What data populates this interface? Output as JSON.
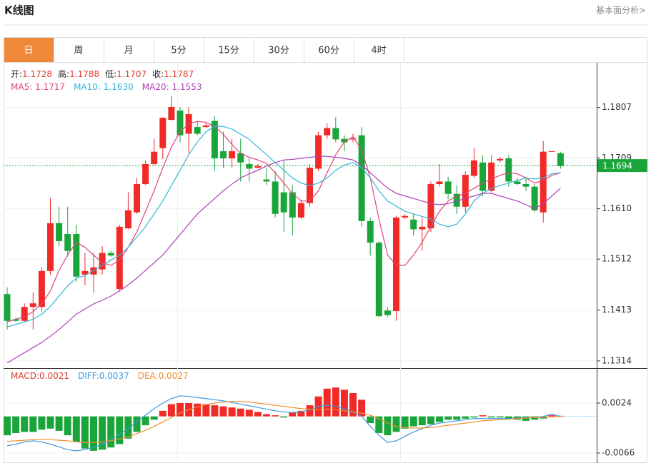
{
  "header": {
    "title": "K线图",
    "link": "基本面分析>"
  },
  "tabs": [
    "日",
    "周",
    "月",
    "5分",
    "15分",
    "30分",
    "60分",
    "4时"
  ],
  "info": {
    "row1": [
      {
        "label": "开:",
        "value": "1.1728"
      },
      {
        "label": "高:",
        "value": "1.1788"
      },
      {
        "label": "低:",
        "value": "1.1707"
      },
      {
        "label": "收:",
        "value": "1.1787"
      }
    ],
    "row2": [
      {
        "label": "MA5: ",
        "value": "1.1717",
        "color": "#e0457b"
      },
      {
        "label": "MA10: ",
        "value": "1.1630",
        "color": "#35b5d8"
      },
      {
        "label": "MA20: ",
        "value": "1.1553",
        "color": "#b040b8"
      }
    ],
    "macd": [
      {
        "label": "MACD:",
        "value": "0.0021",
        "color": "#e03a2e"
      },
      {
        "label": "DIFF:",
        "value": "0.0037",
        "color": "#3d9be0"
      },
      {
        "label": "DEA:",
        "value": "0.0027",
        "color": "#f0902c"
      }
    ]
  },
  "chart_data": [
    {
      "type": "candlestick",
      "up_color": "#f02a26",
      "down_color": "#1aa53a",
      "ylim": [
        1.13,
        1.1894
      ],
      "yticks": [
        {
          "value": 1.1807,
          "label": "1.1807"
        },
        {
          "value": 1.1709,
          "label": "1.1709"
        },
        {
          "value": 1.161,
          "label": "1.1610"
        },
        {
          "value": 1.1512,
          "label": "1.1512"
        },
        {
          "value": 1.1413,
          "label": "1.1413"
        },
        {
          "value": 1.1314,
          "label": "1.1314"
        }
      ],
      "current_price": 1.1694,
      "current_color": "#1aa53a",
      "open": [
        1.1444,
        1.1395,
        1.1392,
        1.1419,
        1.1419,
        1.1489,
        1.1582,
        1.1561,
        1.1561,
        1.1482,
        1.1482,
        1.1492,
        1.1524,
        1.1454,
        1.1572,
        1.1603,
        1.1658,
        1.1697,
        1.1728,
        1.1783,
        1.1801,
        1.1756,
        1.1769,
        1.1769,
        1.1781,
        1.1722,
        1.1708,
        1.1718,
        1.1697,
        1.169,
        1.1667,
        1.1663,
        1.1642,
        1.1642,
        1.1593,
        1.1621,
        1.1688,
        1.1753,
        1.1767,
        1.1746,
        1.1745,
        1.1753,
        1.1586,
        1.1544,
        1.1412,
        1.1411,
        1.1593,
        1.1589,
        1.157,
        1.1572,
        1.1658,
        1.1663,
        1.1639,
        1.1614,
        1.1674,
        1.17,
        1.1645,
        1.1704,
        1.1708,
        1.1663,
        1.1658,
        1.1653,
        1.1603,
        1.1721,
        1.1718
      ],
      "high": [
        1.1457,
        1.1399,
        1.1426,
        1.1447,
        1.1496,
        1.1631,
        1.1614,
        1.1614,
        1.1579,
        1.1524,
        1.1524,
        1.1537,
        1.1528,
        1.1579,
        1.1642,
        1.167,
        1.1704,
        1.1746,
        1.1788,
        1.1829,
        1.1808,
        1.1808,
        1.1781,
        1.1776,
        1.179,
        1.176,
        1.1746,
        1.1746,
        1.1708,
        1.1697,
        1.169,
        1.1683,
        1.1704,
        1.1656,
        1.1628,
        1.1697,
        1.176,
        1.1776,
        1.1788,
        1.1753,
        1.1756,
        1.1769,
        1.1593,
        1.1547,
        1.1419,
        1.1596,
        1.16,
        1.16,
        1.1593,
        1.1663,
        1.1697,
        1.1672,
        1.1656,
        1.1683,
        1.1728,
        1.1714,
        1.1714,
        1.1711,
        1.1714,
        1.167,
        1.167,
        1.1658,
        1.1742,
        1.1722,
        1.1721
      ],
      "low": [
        1.1375,
        1.1389,
        1.1389,
        1.1375,
        1.141,
        1.1482,
        1.1537,
        1.1517,
        1.1468,
        1.1461,
        1.1447,
        1.1482,
        1.1517,
        1.145,
        1.157,
        1.16,
        1.1656,
        1.1694,
        1.1707,
        1.1781,
        1.1739,
        1.1718,
        1.1753,
        1.1767,
        1.1683,
        1.169,
        1.169,
        1.1663,
        1.1663,
        1.1688,
        1.1656,
        1.1593,
        1.1565,
        1.1558,
        1.159,
        1.1614,
        1.1683,
        1.1746,
        1.1739,
        1.1722,
        1.1739,
        1.1575,
        1.1519,
        1.1399,
        1.1399,
        1.1392,
        1.159,
        1.1558,
        1.1528,
        1.1565,
        1.1653,
        1.1628,
        1.16,
        1.1603,
        1.167,
        1.1635,
        1.1642,
        1.17,
        1.1653,
        1.1656,
        1.1645,
        1.1603,
        1.1583,
        1.1721,
        1.1688
      ],
      "close": [
        1.1392,
        1.1392,
        1.1419,
        1.1426,
        1.1489,
        1.1582,
        1.1547,
        1.1528,
        1.1478,
        1.1489,
        1.1496,
        1.1524,
        1.1519,
        1.1575,
        1.1607,
        1.1658,
        1.1697,
        1.1721,
        1.1787,
        1.1808,
        1.1753,
        1.1794,
        1.1756,
        1.1772,
        1.1708,
        1.1708,
        1.1722,
        1.17,
        1.1688,
        1.1693,
        1.1663,
        1.16,
        1.1603,
        1.1593,
        1.1621,
        1.169,
        1.1753,
        1.1767,
        1.1745,
        1.1739,
        1.1747,
        1.1586,
        1.1544,
        1.1401,
        1.1403,
        1.1593,
        1.1596,
        1.157,
        1.1575,
        1.1658,
        1.1663,
        1.1639,
        1.1614,
        1.1676,
        1.1704,
        1.1645,
        1.17,
        1.1707,
        1.1663,
        1.1658,
        1.1653,
        1.1607,
        1.1721,
        1.1722,
        1.1693
      ],
      "series": [
        {
          "name": "MA5",
          "color": "#e0457b",
          "values": [
            1.139,
            1.1395,
            1.14,
            1.141,
            1.1425,
            1.145,
            1.149,
            1.152,
            1.1545,
            1.1535,
            1.152,
            1.1505,
            1.15,
            1.151,
            1.1535,
            1.1565,
            1.1605,
            1.1645,
            1.169,
            1.173,
            1.176,
            1.1775,
            1.178,
            1.1778,
            1.177,
            1.1755,
            1.1735,
            1.1718,
            1.171,
            1.1705,
            1.1698,
            1.168,
            1.166,
            1.164,
            1.1625,
            1.1625,
            1.1645,
            1.168,
            1.1715,
            1.174,
            1.175,
            1.1725,
            1.167,
            1.159,
            1.152,
            1.15,
            1.15,
            1.152,
            1.1545,
            1.1575,
            1.1605,
            1.1625,
            1.1635,
            1.164,
            1.165,
            1.166,
            1.1668,
            1.1675,
            1.168,
            1.1678,
            1.167,
            1.166,
            1.1665,
            1.1675,
            1.168
          ]
        },
        {
          "name": "MA10",
          "color": "#35b5d8",
          "values": [
            1.138,
            1.1385,
            1.139,
            1.1395,
            1.1405,
            1.142,
            1.144,
            1.146,
            1.1475,
            1.148,
            1.149,
            1.15,
            1.151,
            1.152,
            1.1535,
            1.1555,
            1.1575,
            1.16,
            1.1625,
            1.1655,
            1.1685,
            1.1715,
            1.174,
            1.176,
            1.177,
            1.177,
            1.1765,
            1.1755,
            1.1745,
            1.173,
            1.1715,
            1.17,
            1.1685,
            1.167,
            1.166,
            1.1655,
            1.166,
            1.167,
            1.1685,
            1.1695,
            1.17,
            1.169,
            1.167,
            1.1645,
            1.1625,
            1.1615,
            1.1605,
            1.16,
            1.1595,
            1.159,
            1.158,
            1.1575,
            1.158,
            1.16,
            1.1625,
            1.164,
            1.165,
            1.1655,
            1.166,
            1.1665,
            1.167,
            1.1668,
            1.167,
            1.1678,
            1.168
          ]
        },
        {
          "name": "MA20",
          "color": "#b040b8",
          "values": [
            1.131,
            1.132,
            1.133,
            1.134,
            1.135,
            1.1362,
            1.1375,
            1.139,
            1.1405,
            1.1415,
            1.1425,
            1.1432,
            1.144,
            1.145,
            1.1462,
            1.1475,
            1.149,
            1.1505,
            1.152,
            1.154,
            1.156,
            1.158,
            1.16,
            1.1615,
            1.163,
            1.1645,
            1.1658,
            1.167,
            1.1678,
            1.1685,
            1.1693,
            1.17,
            1.1705,
            1.1706,
            1.1708,
            1.171,
            1.1712,
            1.1712,
            1.171,
            1.1708,
            1.1705,
            1.1695,
            1.168,
            1.1665,
            1.165,
            1.164,
            1.1635,
            1.163,
            1.1625,
            1.162,
            1.1618,
            1.162,
            1.1625,
            1.163,
            1.1635,
            1.164,
            1.164,
            1.1635,
            1.163,
            1.1625,
            1.1618,
            1.161,
            1.162,
            1.1635,
            1.165
          ]
        }
      ]
    },
    {
      "type": "macd",
      "ylim": [
        -0.0084,
        0.0087
      ],
      "yticks": [
        0.0024,
        -0.0066
      ],
      "up_color": "#f02a26",
      "down_color": "#1aa53a",
      "histogram": [
        -0.0034,
        -0.003,
        -0.0028,
        -0.0028,
        -0.0024,
        -0.0022,
        -0.0026,
        -0.0034,
        -0.0046,
        -0.0058,
        -0.0062,
        -0.006,
        -0.0056,
        -0.005,
        -0.004,
        -0.0028,
        -0.0016,
        -0.0006,
        0.001,
        0.0022,
        0.0024,
        0.0024,
        0.0023,
        0.0022,
        0.002,
        0.0018,
        0.0016,
        0.0014,
        0.0012,
        0.0008,
        0.0004,
        0.0002,
        -0.0002,
        0.0008,
        0.001,
        0.002,
        0.0036,
        0.005,
        0.0052,
        0.0048,
        0.0042,
        0.003,
        -0.0012,
        -0.003,
        -0.0034,
        -0.0028,
        -0.0022,
        -0.0018,
        -0.0016,
        -0.0014,
        -0.001,
        -0.0006,
        -0.0006,
        -0.0004,
        -0.0002,
        0.0002,
        -0.0002,
        -0.0002,
        -0.0004,
        -0.0006,
        -0.0008,
        -0.0006,
        -0.0004,
        0.0002,
        0.0001
      ],
      "series": [
        {
          "name": "DIFF",
          "color": "#3d9be0",
          "values": [
            -0.0053,
            -0.005,
            -0.0046,
            -0.0044,
            -0.0046,
            -0.005,
            -0.0055,
            -0.006,
            -0.0062,
            -0.006,
            -0.0056,
            -0.005,
            -0.0042,
            -0.0032,
            -0.0022,
            -0.001,
            0.0002,
            0.0014,
            0.0024,
            0.0032,
            0.0037,
            0.0036,
            0.0034,
            0.0032,
            0.003,
            0.0028,
            0.0025,
            0.0022,
            0.0019,
            0.0016,
            0.0013,
            0.001,
            0.0008,
            0.0007,
            0.0008,
            0.0012,
            0.0018,
            0.002,
            0.0018,
            0.0014,
            0.0008,
            0,
            -0.0018,
            -0.0034,
            -0.0047,
            -0.0044,
            -0.0036,
            -0.0028,
            -0.0022,
            -0.0016,
            -0.0012,
            -0.001,
            -0.0008,
            -0.0006,
            -0.0004,
            -0.0004,
            -0.0004,
            -0.0004,
            -0.0004,
            -0.0003,
            -0.0002,
            -0.0002,
            0,
            0.0004,
            0
          ]
        },
        {
          "name": "DEA",
          "color": "#f0902c",
          "values": [
            -0.0045,
            -0.0044,
            -0.0043,
            -0.0042,
            -0.0042,
            -0.0042,
            -0.0043,
            -0.0044,
            -0.0046,
            -0.0047,
            -0.0047,
            -0.0046,
            -0.0044,
            -0.0041,
            -0.0037,
            -0.0031,
            -0.0025,
            -0.0018,
            -0.001,
            -0.0002,
            0.0006,
            0.0012,
            0.0017,
            0.0021,
            0.0024,
            0.0026,
            0.0027,
            0.0027,
            0.0026,
            0.0024,
            0.0022,
            0.002,
            0.0018,
            0.0016,
            0.0014,
            0.0013,
            0.0013,
            0.0013,
            0.0012,
            0.001,
            0.0008,
            0.0006,
            0.0002,
            -0.0004,
            -0.0012,
            -0.0018,
            -0.002,
            -0.0021,
            -0.0021,
            -0.002,
            -0.0018,
            -0.0016,
            -0.0014,
            -0.0012,
            -0.001,
            -0.0008,
            -0.0007,
            -0.0006,
            -0.0005,
            -0.0004,
            -0.0003,
            -0.0002,
            -0.0002,
            -0.0001,
            0
          ]
        }
      ]
    }
  ]
}
